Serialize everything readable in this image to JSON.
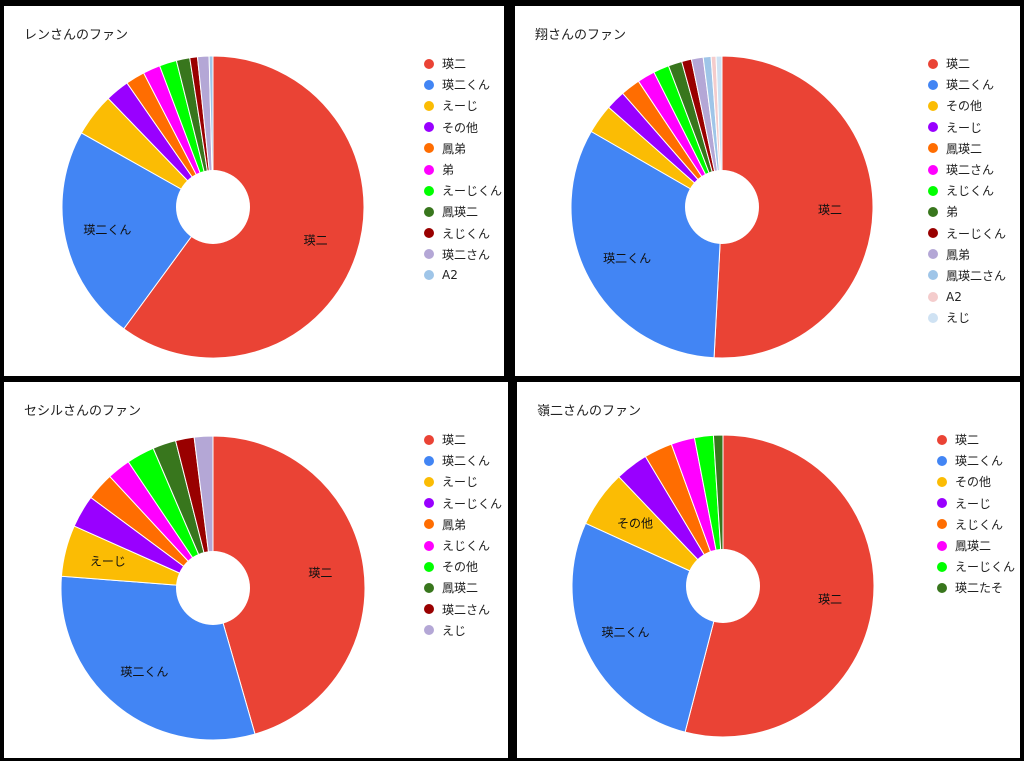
{
  "chart_data": [
    {
      "type": "pie",
      "donut": true,
      "title": "レンさんのファン",
      "legend_position": "right",
      "categories": [
        "瑛二",
        "瑛二くん",
        "えーじ",
        "その他",
        "鳳弟",
        "弟",
        "えーじくん",
        "鳳瑛二",
        "えじくん",
        "瑛二さん",
        "A2"
      ],
      "values": [
        58.5,
        22.5,
        4.5,
        2.5,
        2.0,
        1.8,
        1.8,
        1.4,
        0.8,
        1.2,
        0.4
      ],
      "colors": [
        "#ea4335",
        "#4285f4",
        "#fbbc04",
        "#9900ff",
        "#ff6d01",
        "#ff00ff",
        "#00ff00",
        "#38761d",
        "#990000",
        "#b4a7d6",
        "#9fc5e8"
      ],
      "slice_labels": [
        "瑛二",
        "瑛二くん",
        "",
        "",
        "",
        "",
        "",
        "",
        "",
        "",
        ""
      ]
    },
    {
      "type": "pie",
      "donut": true,
      "title": "翔さんのファン",
      "legend_position": "right",
      "categories": [
        "瑛二",
        "瑛二くん",
        "その他",
        "えーじ",
        "鳳瑛二",
        "瑛二さん",
        "えじくん",
        "弟",
        "えーじくん",
        "鳳弟",
        "鳳瑛二さん",
        "A2",
        "えじ"
      ],
      "values": [
        48.5,
        31.0,
        3.0,
        2.0,
        2.0,
        1.8,
        1.6,
        1.4,
        1.0,
        1.2,
        0.8,
        0.5,
        0.6
      ],
      "colors": [
        "#ea4335",
        "#4285f4",
        "#fbbc04",
        "#9900ff",
        "#ff6d01",
        "#ff00ff",
        "#00ff00",
        "#38761d",
        "#990000",
        "#b4a7d6",
        "#9fc5e8",
        "#f4cccc",
        "#cfe2f3"
      ],
      "slice_labels": [
        "瑛二",
        "瑛二くん",
        "",
        "",
        "",
        "",
        "",
        "",
        "",
        "",
        "",
        "",
        ""
      ]
    },
    {
      "type": "pie",
      "donut": true,
      "title": "セシルさんのファン",
      "legend_position": "right",
      "categories": [
        "瑛二",
        "瑛二くん",
        "えーじ",
        "えーじくん",
        "鳳弟",
        "えじくん",
        "その他",
        "鳳瑛二",
        "瑛二さん",
        "えじ"
      ],
      "values": [
        46.0,
        31.0,
        5.5,
        3.5,
        3.0,
        2.5,
        3.0,
        2.5,
        2.0,
        2.0
      ],
      "colors": [
        "#ea4335",
        "#4285f4",
        "#fbbc04",
        "#9900ff",
        "#ff6d01",
        "#ff00ff",
        "#00ff00",
        "#38761d",
        "#990000",
        "#b4a7d6"
      ],
      "slice_labels": [
        "瑛二",
        "瑛二くん",
        "えーじ",
        "",
        "",
        "",
        "",
        "",
        "",
        ""
      ]
    },
    {
      "type": "pie",
      "donut": true,
      "title": "嶺二さんのファン",
      "legend_position": "right",
      "categories": [
        "瑛二",
        "瑛二くん",
        "その他",
        "えーじ",
        "えじくん",
        "鳳瑛二",
        "えーじくん",
        "瑛二たそ"
      ],
      "values": [
        53.5,
        27.5,
        6.0,
        3.5,
        3.0,
        2.5,
        2.0,
        1.0
      ],
      "colors": [
        "#ea4335",
        "#4285f4",
        "#fbbc04",
        "#9900ff",
        "#ff6d01",
        "#ff00ff",
        "#00ff00",
        "#38761d"
      ],
      "slice_labels": [
        "瑛二",
        "瑛二くん",
        "その他",
        "",
        "",
        "",
        "",
        ""
      ]
    }
  ]
}
